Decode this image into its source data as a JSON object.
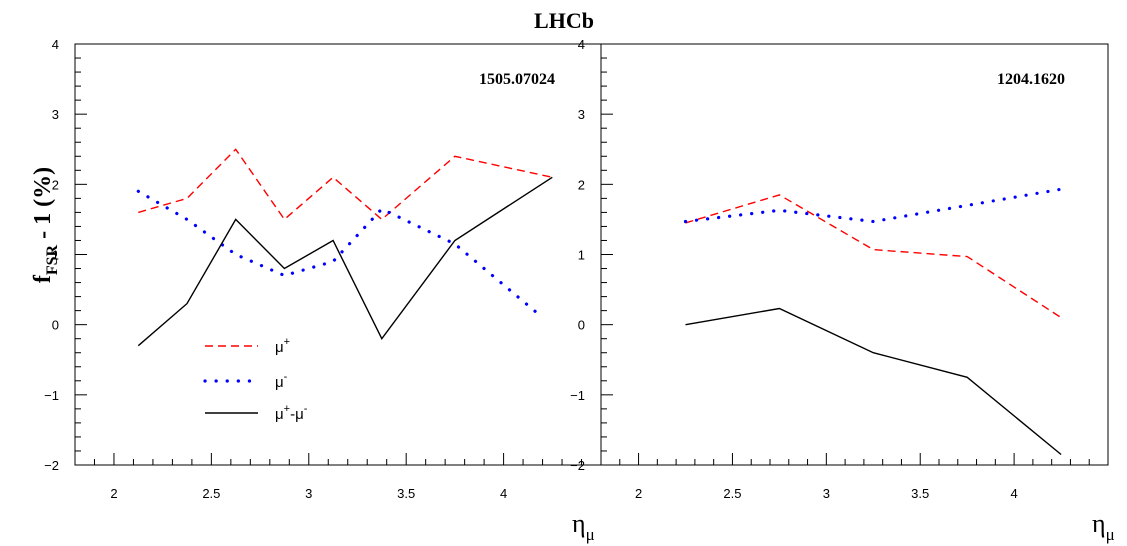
{
  "chart_data": {
    "type": "line",
    "title": "LHCb",
    "ylabel": {
      "main": "f",
      "sub": "FSR",
      "rest": " - 1 (%)"
    },
    "xlabel": {
      "main": "η",
      "sub": "μ"
    },
    "ylim": [
      -2,
      4
    ],
    "yticks": [
      -2,
      -1,
      0,
      1,
      2,
      3,
      4
    ],
    "ytick_labels": [
      "−2",
      "−1",
      "0",
      "1",
      "2",
      "3",
      "4"
    ],
    "colors": {
      "mu_plus": "#ff0000",
      "mu_minus": "#0000ff",
      "diff": "#000000"
    },
    "legend": {
      "position": "lower-left of left panel",
      "entries": [
        {
          "key": "mu_plus",
          "label": "μ",
          "sup": "+"
        },
        {
          "key": "mu_minus",
          "label": "μ",
          "sup": "-"
        },
        {
          "key": "diff",
          "label": "μ",
          "sup": "+",
          "mid": "-μ",
          "sup2": "-"
        }
      ]
    },
    "panels": [
      {
        "label": "1505.07024",
        "xlim": [
          1.8,
          4.5
        ],
        "xticks": [
          2,
          2.5,
          3,
          3.5,
          4
        ],
        "xtick_labels": [
          "2",
          "2.5",
          "3",
          "3.5",
          "4"
        ],
        "series": [
          {
            "key": "mu_plus",
            "style": "dashed",
            "x": [
              2.125,
              2.375,
              2.625,
              2.875,
              3.125,
              3.375,
              3.75,
              4.25
            ],
            "y": [
              1.6,
              1.8,
              2.5,
              1.5,
              2.1,
              1.5,
              2.4,
              2.1
            ]
          },
          {
            "key": "mu_minus",
            "style": "dotted",
            "x": [
              2.125,
              2.375,
              2.625,
              2.875,
              3.125,
              3.375,
              3.75,
              4.2
            ],
            "y": [
              1.9,
              1.5,
              1.0,
              0.7,
              0.9,
              1.65,
              1.15,
              0.1
            ]
          },
          {
            "key": "diff",
            "style": "solid",
            "x": [
              2.125,
              2.375,
              2.625,
              2.875,
              3.125,
              3.375,
              3.75,
              4.25
            ],
            "y": [
              -0.3,
              0.3,
              1.5,
              0.8,
              1.2,
              -0.2,
              1.2,
              2.1
            ]
          }
        ]
      },
      {
        "label": "1204.1620",
        "xlim": [
          1.8,
          4.5
        ],
        "xticks": [
          2,
          2.5,
          3,
          3.5,
          4
        ],
        "xtick_labels": [
          "2",
          "2.5",
          "3",
          "3.5",
          "4"
        ],
        "series": [
          {
            "key": "mu_plus",
            "style": "dashed",
            "x": [
              2.25,
              2.75,
              3.25,
              3.75,
              4.25
            ],
            "y": [
              1.45,
              1.85,
              1.07,
              0.97,
              0.1
            ]
          },
          {
            "key": "mu_minus",
            "style": "dotted",
            "x": [
              2.25,
              2.75,
              3.25,
              3.75,
              4.25
            ],
            "y": [
              1.47,
              1.63,
              1.47,
              1.7,
              1.93
            ]
          },
          {
            "key": "diff",
            "style": "solid",
            "x": [
              2.25,
              2.75,
              3.25,
              3.75,
              4.25
            ],
            "y": [
              0.0,
              0.23,
              -0.4,
              -0.75,
              -1.85
            ]
          }
        ]
      }
    ]
  }
}
